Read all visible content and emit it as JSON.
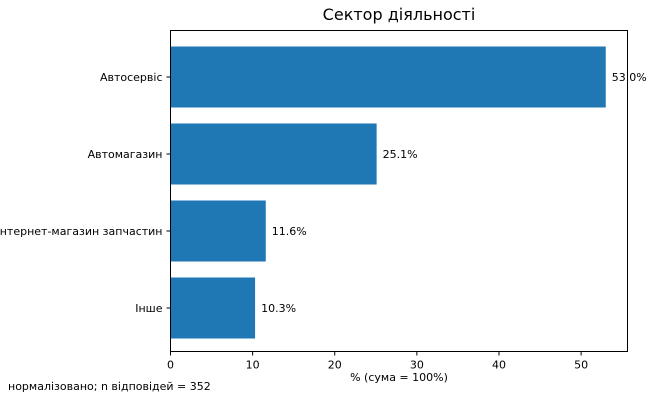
{
  "chart_data": {
    "type": "bar",
    "orientation": "horizontal",
    "title": "Сектор діяльності",
    "xlabel": "% (сума = 100%)",
    "ylabel": "",
    "categories": [
      "Автосервіс",
      "Автомагазин",
      "Інтернет-магазин запчастин",
      "Інше"
    ],
    "values": [
      53.0,
      25.1,
      11.6,
      10.3
    ],
    "value_labels": [
      "53.0%",
      "25.1%",
      "11.6%",
      "10.3%"
    ],
    "xlim": [
      0,
      55.65
    ],
    "xticks": [
      0,
      10,
      20,
      30,
      40,
      50
    ],
    "grid": false,
    "bar_color": "#1f77b4"
  },
  "footnote": "нормалізовано; n відповідей = 352"
}
